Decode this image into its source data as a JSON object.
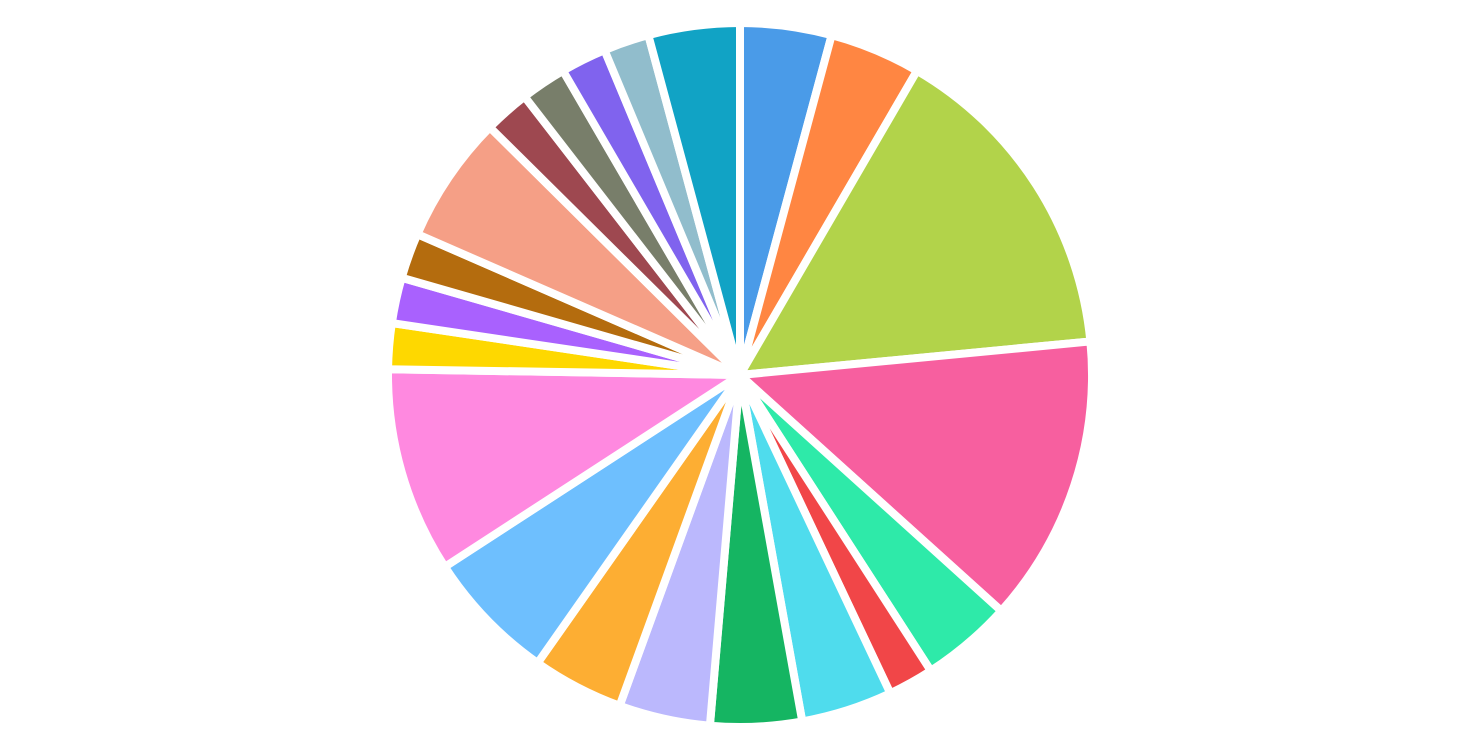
{
  "chart_data": {
    "type": "pie",
    "start": "top",
    "direction": "clockwise",
    "legend": "none",
    "slices": [
      {
        "value": 2,
        "color": "#4a9be8"
      },
      {
        "value": 2,
        "color": "#ff8642"
      },
      {
        "value": 7.2,
        "color": "#b2d34a"
      },
      {
        "value": 6.3,
        "color": "#f75f9f"
      },
      {
        "value": 2,
        "color": "#2eeaa9"
      },
      {
        "value": 1,
        "color": "#f14648"
      },
      {
        "value": 2,
        "color": "#4fdced"
      },
      {
        "value": 2,
        "color": "#15b562"
      },
      {
        "value": 2,
        "color": "#bbb8fd"
      },
      {
        "value": 2,
        "color": "#fdae33"
      },
      {
        "value": 2.9,
        "color": "#6ebffe"
      },
      {
        "value": 4.5,
        "color": "#ff89e0"
      },
      {
        "value": 1,
        "color": "#fed800"
      },
      {
        "value": 1,
        "color": "#a961fe"
      },
      {
        "value": 1,
        "color": "#b46c0e"
      },
      {
        "value": 2.8,
        "color": "#f59f86"
      },
      {
        "value": 1,
        "color": "#9e4850"
      },
      {
        "value": 1,
        "color": "#787e6a"
      },
      {
        "value": 1,
        "color": "#8063ee"
      },
      {
        "value": 1,
        "color": "#91bdcc"
      },
      {
        "value": 2,
        "color": "#11a3c5"
      }
    ]
  }
}
